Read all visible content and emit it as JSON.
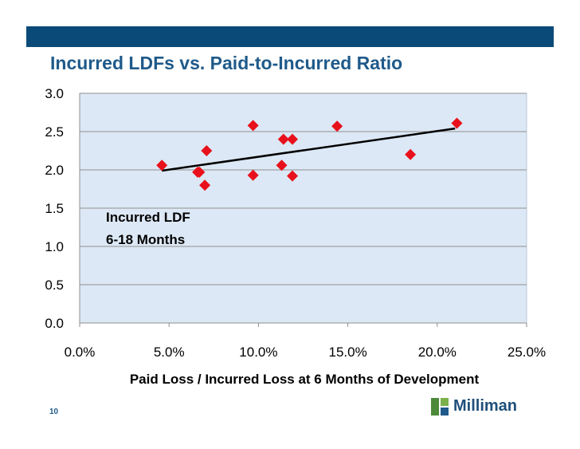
{
  "slide": {
    "title": "Incurred LDFs vs. Paid-to-Incurred Ratio",
    "page_number": "10",
    "logo_text": "Milliman"
  },
  "colors": {
    "header_bar": "#0a4a78",
    "title": "#1f5a8a",
    "plot_background": "#dce8f5",
    "point": "#e8111b",
    "trendline": "#000000"
  },
  "chart_data": {
    "type": "scatter",
    "xlabel": "Paid Loss / Incurred Loss at 6 Months of Development",
    "ylabel": "",
    "annotation": [
      "Incurred LDF",
      "6-18 Months"
    ],
    "xlim": [
      0.0,
      0.25
    ],
    "ylim": [
      0.0,
      3.0
    ],
    "x_ticks": [
      0.0,
      0.05,
      0.1,
      0.15,
      0.2,
      0.25
    ],
    "x_tick_labels": [
      "0.0%",
      "5.0%",
      "10.0%",
      "15.0%",
      "20.0%",
      "25.0%"
    ],
    "y_ticks": [
      0.0,
      0.5,
      1.0,
      1.5,
      2.0,
      2.5,
      3.0
    ],
    "y_tick_labels": [
      "0.0",
      "0.5",
      "1.0",
      "1.5",
      "2.0",
      "2.5",
      "3.0"
    ],
    "grid": "horizontal",
    "points": [
      {
        "x": 0.046,
        "y": 2.06
      },
      {
        "x": 0.066,
        "y": 1.97
      },
      {
        "x": 0.067,
        "y": 1.97
      },
      {
        "x": 0.07,
        "y": 1.8
      },
      {
        "x": 0.071,
        "y": 2.25
      },
      {
        "x": 0.097,
        "y": 2.58
      },
      {
        "x": 0.097,
        "y": 1.93
      },
      {
        "x": 0.113,
        "y": 2.06
      },
      {
        "x": 0.114,
        "y": 2.4
      },
      {
        "x": 0.119,
        "y": 2.4
      },
      {
        "x": 0.119,
        "y": 1.92
      },
      {
        "x": 0.144,
        "y": 2.57
      },
      {
        "x": 0.185,
        "y": 2.2
      },
      {
        "x": 0.211,
        "y": 2.61
      }
    ],
    "trendline": {
      "x": [
        0.046,
        0.21
      ],
      "y": [
        1.99,
        2.54
      ]
    }
  }
}
